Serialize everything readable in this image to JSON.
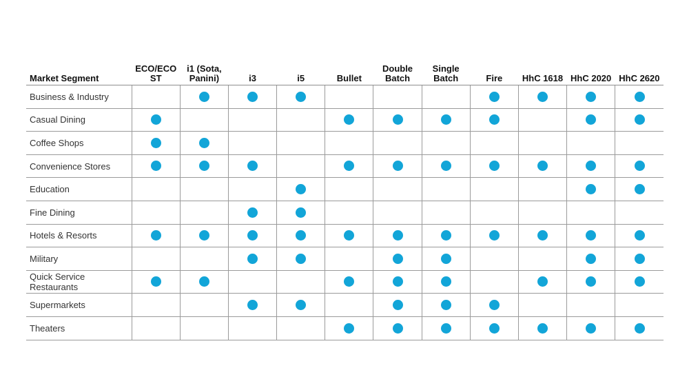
{
  "table": {
    "segment_header": "Market Segment",
    "products": [
      "ECO/ECO ST",
      "i1 (Sota, Panini)",
      "i3",
      "i5",
      "Bullet",
      "Double Batch",
      "Single Batch",
      "Fire",
      "HhC 1618",
      "HhC 2020",
      "HhC 2620"
    ],
    "dot_color": "#12a5d8",
    "rows": [
      {
        "segment": "Business & Industry",
        "marks": [
          0,
          1,
          1,
          1,
          0,
          0,
          0,
          1,
          1,
          1,
          1
        ]
      },
      {
        "segment": "Casual Dining",
        "marks": [
          1,
          0,
          0,
          0,
          1,
          1,
          1,
          1,
          0,
          1,
          1
        ]
      },
      {
        "segment": "Coffee Shops",
        "marks": [
          1,
          1,
          0,
          0,
          0,
          0,
          0,
          0,
          0,
          0,
          0
        ]
      },
      {
        "segment": "Convenience Stores",
        "marks": [
          1,
          1,
          1,
          0,
          1,
          1,
          1,
          1,
          1,
          1,
          1
        ]
      },
      {
        "segment": "Education",
        "marks": [
          0,
          0,
          0,
          1,
          0,
          0,
          0,
          0,
          0,
          1,
          1
        ]
      },
      {
        "segment": "Fine Dining",
        "marks": [
          0,
          0,
          1,
          1,
          0,
          0,
          0,
          0,
          0,
          0,
          0
        ]
      },
      {
        "segment": "Hotels & Resorts",
        "marks": [
          1,
          1,
          1,
          1,
          1,
          1,
          1,
          1,
          1,
          1,
          1
        ]
      },
      {
        "segment": "Military",
        "marks": [
          0,
          0,
          1,
          1,
          0,
          1,
          1,
          0,
          0,
          1,
          1
        ]
      },
      {
        "segment": "Quick Service Restaurants",
        "marks": [
          1,
          1,
          0,
          0,
          1,
          1,
          1,
          0,
          1,
          1,
          1
        ]
      },
      {
        "segment": "Supermarkets",
        "marks": [
          0,
          0,
          1,
          1,
          0,
          1,
          1,
          1,
          0,
          0,
          0
        ]
      },
      {
        "segment": "Theaters",
        "marks": [
          0,
          0,
          0,
          0,
          1,
          1,
          1,
          1,
          1,
          1,
          1
        ]
      }
    ]
  }
}
